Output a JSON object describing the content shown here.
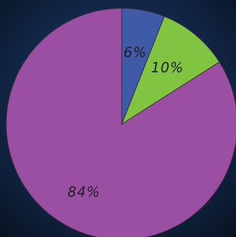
{
  "chart_data": {
    "type": "pie",
    "slices": [
      {
        "label": "84%",
        "value": 84,
        "color": "#9b4fa3"
      },
      {
        "label": "10%",
        "value": 10,
        "color": "#80c441"
      },
      {
        "label": "6%",
        "value": 6,
        "color": "#3f5aa6"
      }
    ],
    "start": "top",
    "direction": "counter-clockwise",
    "legend": "none",
    "background": "#0f1f3a",
    "label_color": "#1f1f1f",
    "edge_color": "#3a2a3a"
  }
}
